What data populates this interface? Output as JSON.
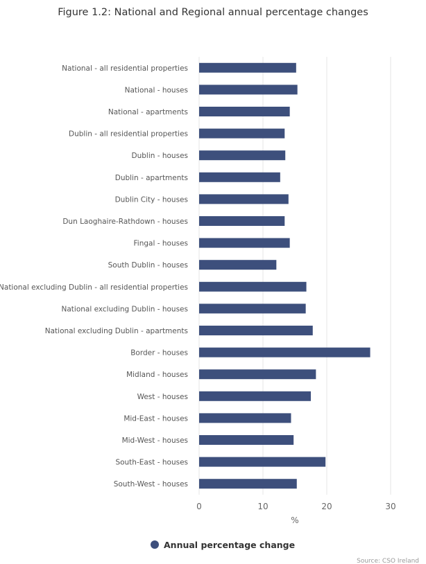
{
  "chart_data": {
    "type": "bar",
    "orientation": "horizontal",
    "title": "Figure 1.2: National and Regional annual percentage changes",
    "xlabel": "%",
    "xlim": [
      0,
      30
    ],
    "xticks": [
      0,
      10,
      20,
      30
    ],
    "grid": true,
    "legend_position": "bottom",
    "bar_color": "#3d4f7c",
    "categories": [
      "National - all residential properties",
      "National - houses",
      "National - apartments",
      "Dublin - all residential properties",
      "Dublin - houses",
      "Dublin - apartments",
      "Dublin City - houses",
      "Dun Laoghaire-Rathdown - houses",
      "Fingal - houses",
      "South Dublin - houses",
      "National excluding Dublin - all residential properties",
      "National excluding Dublin - houses",
      "National excluding Dublin - apartments",
      "Border - houses",
      "Midland - houses",
      "West - houses",
      "Mid-East - houses",
      "Mid-West - houses",
      "South-East - houses",
      "South-West - houses"
    ],
    "series": [
      {
        "name": "Annual percentage change",
        "values": [
          15.2,
          15.4,
          14.2,
          13.4,
          13.5,
          12.7,
          14.0,
          13.4,
          14.2,
          12.1,
          16.8,
          16.7,
          17.8,
          26.8,
          18.3,
          17.5,
          14.4,
          14.8,
          19.8,
          15.3
        ]
      }
    ],
    "source": "Source: CSO Ireland"
  }
}
